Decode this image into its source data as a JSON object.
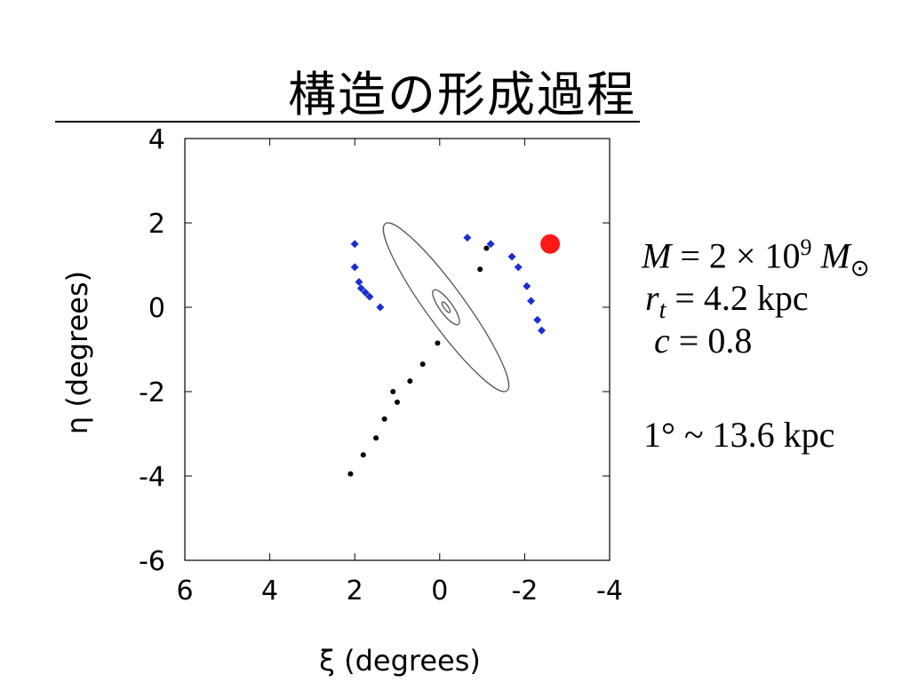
{
  "slide": {
    "title": "構造の形成過程"
  },
  "chart_data": {
    "type": "scatter",
    "xlabel": "ξ (degrees)",
    "ylabel": "η (degrees)",
    "xlim": [
      6,
      -4
    ],
    "ylim": [
      -6,
      4
    ],
    "x_reversed": true,
    "xticks": [
      6,
      4,
      2,
      0,
      -2,
      -4
    ],
    "yticks": [
      4,
      2,
      0,
      -2,
      -4,
      -6
    ],
    "xtick_labels": [
      "6",
      "4",
      "2",
      "0",
      "-2",
      "-4"
    ],
    "ytick_labels": [
      "4",
      "2",
      "0",
      "-2",
      "-4",
      "-6"
    ],
    "grid": false,
    "series": [
      {
        "marker": "dot",
        "color": "#000000",
        "points": [
          [
            2.1,
            -3.95
          ],
          [
            1.8,
            -3.5
          ],
          [
            1.5,
            -3.1
          ],
          [
            1.3,
            -2.65
          ],
          [
            1.0,
            -2.25
          ],
          [
            1.1,
            -2.0
          ],
          [
            0.7,
            -1.75
          ],
          [
            0.4,
            -1.35
          ],
          [
            0.05,
            -0.85
          ],
          [
            -0.95,
            0.9
          ],
          [
            -1.1,
            1.4
          ]
        ]
      },
      {
        "marker": "diamond",
        "color": "#1a2fd0",
        "points": [
          [
            2.0,
            1.5
          ],
          [
            2.0,
            0.95
          ],
          [
            1.9,
            0.6
          ],
          [
            1.85,
            0.45
          ],
          [
            1.75,
            0.35
          ],
          [
            1.65,
            0.25
          ],
          [
            1.4,
            0.0
          ],
          [
            -0.65,
            1.65
          ],
          [
            -1.2,
            1.5
          ],
          [
            -1.7,
            1.2
          ],
          [
            -1.85,
            0.95
          ],
          [
            -2.05,
            0.5
          ],
          [
            -2.15,
            0.15
          ],
          [
            -2.3,
            -0.3
          ],
          [
            -2.4,
            -0.55
          ]
        ]
      },
      {
        "marker": "disk",
        "color": "#ff1a1a",
        "points": [
          [
            -2.6,
            1.5
          ]
        ]
      }
    ],
    "ellipses": [
      {
        "cx": -0.15,
        "cy": 0.0,
        "rx": 0.45,
        "ry": 2.45,
        "angle_deg": -36
      },
      {
        "cx": -0.15,
        "cy": 0.0,
        "rx": 0.15,
        "ry": 0.5,
        "angle_deg": -36
      },
      {
        "cx": -0.15,
        "cy": 0.0,
        "rx": 0.05,
        "ry": 0.15,
        "angle_deg": -36
      }
    ]
  },
  "params": {
    "mass_symbol": "M",
    "mass_eq": " = 2 × 10",
    "mass_exp": "9",
    "mass_unit_symbol": " M",
    "mass_unit_sub": "⊙",
    "rt_symbol": "r",
    "rt_sub": "t",
    "rt_value": " = 4.2 kpc",
    "c_symbol": "c",
    "c_value": " = 0.8",
    "scale_deg": "1°",
    "scale_value": " ~ 13.6 kpc"
  }
}
